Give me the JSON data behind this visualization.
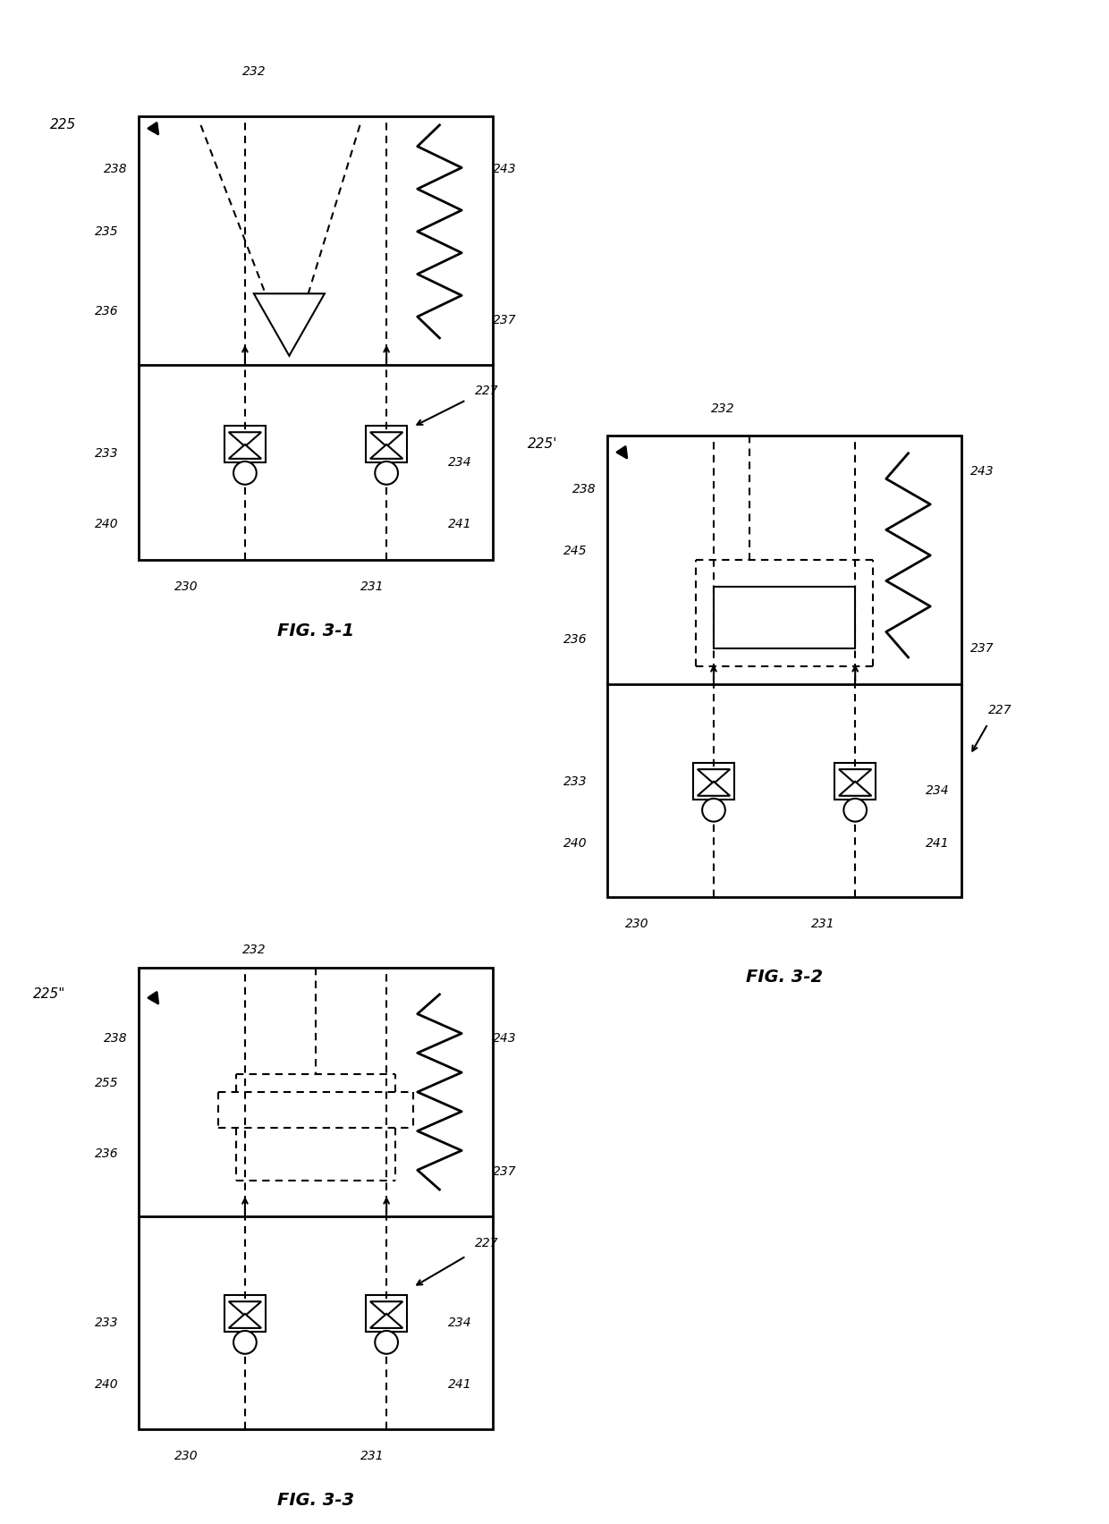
{
  "bg_color": "#ffffff",
  "line_color": "#000000",
  "fig_width": 12.4,
  "fig_height": 17.04,
  "fig31_title": "FIG. 3-1",
  "fig32_title": "FIG. 3-2",
  "fig33_title": "FIG. 3-3"
}
